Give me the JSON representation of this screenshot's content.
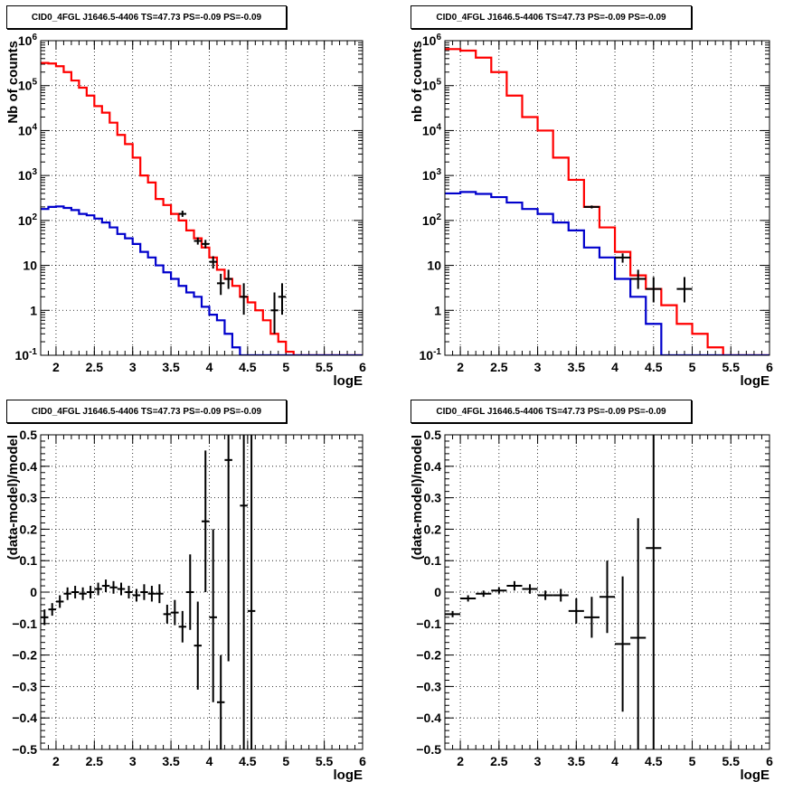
{
  "colors": {
    "frame": "#000000",
    "grid": "#000000",
    "data": "#000000",
    "total": "#ff0000",
    "source": "#0000cc"
  },
  "chart_data": [
    {
      "type": "line",
      "title": "CID0_4FGL J1646.5-4406 TS=47.73 PS=-0.09 PS=-0.09",
      "xlabel": "logE",
      "ylabel": "Nb of counts",
      "xlim": [
        1.8,
        6
      ],
      "ylim": [
        0.1,
        1000000
      ],
      "log_y": true,
      "grid": true,
      "x_ticks": [
        2,
        2.5,
        3,
        3.5,
        4,
        4.5,
        5,
        5.5,
        6
      ],
      "x_tick_labels": [
        "2",
        "2.5",
        "3",
        "3.5",
        "4",
        "4.5",
        "5",
        "5.5",
        "6"
      ],
      "y_ticks": [
        0.1,
        1,
        10,
        100,
        1000,
        10000,
        100000,
        1000000
      ],
      "y_tick_labels": [
        "10^-1",
        "1",
        "10",
        "10^2",
        "10^3",
        "10^4",
        "10^5",
        "10^6"
      ],
      "bin_edges": [
        1.8,
        1.9,
        2.0,
        2.1,
        2.2,
        2.3,
        2.4,
        2.5,
        2.6,
        2.7,
        2.8,
        2.9,
        3.0,
        3.1,
        3.2,
        3.3,
        3.4,
        3.5,
        3.6,
        3.7,
        3.8,
        3.9,
        4.0,
        4.1,
        4.2,
        4.3,
        4.4,
        4.5,
        4.6,
        4.7,
        4.8,
        4.9,
        5.0,
        5.1,
        5.2,
        5.3,
        5.4,
        5.5,
        5.6,
        5.7,
        5.8,
        5.9,
        6.0
      ],
      "series": [
        {
          "style": "step",
          "color": "#ff0000",
          "values": [
            320000,
            310000,
            270000,
            200000,
            130000,
            90000,
            60000,
            35000,
            25000,
            15000,
            8000,
            5000,
            2500,
            1000,
            700,
            300,
            220,
            140,
            100,
            60,
            40,
            25,
            15,
            8,
            5,
            3.5,
            2,
            1.5,
            1,
            0.6,
            0.3,
            0.2,
            0.12,
            0.1,
            0.1,
            0.1,
            0.1,
            0.1,
            0.1,
            0.1,
            0.1,
            0.1
          ]
        },
        {
          "style": "step",
          "color": "#0000cc",
          "values": [
            180,
            200,
            205,
            190,
            170,
            140,
            130,
            110,
            90,
            70,
            50,
            40,
            30,
            20,
            15,
            10,
            7,
            5,
            3.5,
            2.5,
            2,
            1.2,
            0.8,
            0.6,
            0.3,
            0.15,
            0.1,
            0.1,
            0.1,
            0.1,
            0.1,
            0.1,
            0.1,
            0.1,
            0.1,
            0.1,
            0.1,
            0.1,
            0.1,
            0.1,
            0.1,
            0.1
          ]
        },
        {
          "style": "errorbar",
          "color": "#000000",
          "points": [
            {
              "x": 3.65,
              "y": 140,
              "xerr": 0.05,
              "ylo": 120,
              "yhi": 165
            },
            {
              "x": 3.85,
              "y": 35,
              "xerr": 0.05,
              "ylo": 29,
              "yhi": 42
            },
            {
              "x": 3.95,
              "y": 30,
              "xerr": 0.05,
              "ylo": 24,
              "yhi": 37
            },
            {
              "x": 4.05,
              "y": 12,
              "xerr": 0.05,
              "ylo": 8.5,
              "yhi": 16
            },
            {
              "x": 4.15,
              "y": 4,
              "xerr": 0.05,
              "ylo": 2.2,
              "yhi": 6.5
            },
            {
              "x": 4.25,
              "y": 5,
              "xerr": 0.05,
              "ylo": 3,
              "yhi": 8
            },
            {
              "x": 4.45,
              "y": 2,
              "xerr": 0.05,
              "ylo": 0.8,
              "yhi": 4
            },
            {
              "x": 4.85,
              "y": 1,
              "xerr": 0.05,
              "ylo": 0.3,
              "yhi": 2.5
            },
            {
              "x": 4.95,
              "y": 2,
              "xerr": 0.05,
              "ylo": 0.8,
              "yhi": 4
            }
          ]
        }
      ]
    },
    {
      "type": "line",
      "title": "CID0_4FGL J1646.5-4406 TS=47.73 PS=-0.09 PS=-0.09",
      "xlabel": "logE",
      "ylabel": "nb of counts",
      "xlim": [
        1.8,
        6
      ],
      "ylim": [
        0.1,
        1000000
      ],
      "log_y": true,
      "grid": true,
      "x_ticks": [
        2,
        2.5,
        3,
        3.5,
        4,
        4.5,
        5,
        5.5,
        6
      ],
      "x_tick_labels": [
        "2",
        "2.5",
        "3",
        "3.5",
        "4",
        "4.5",
        "5",
        "5.5",
        "6"
      ],
      "y_ticks": [
        0.1,
        1,
        10,
        100,
        1000,
        10000,
        100000,
        1000000
      ],
      "y_tick_labels": [
        "10^-1",
        "1",
        "10",
        "10^2",
        "10^3",
        "10^4",
        "10^5",
        "10^6"
      ],
      "bin_edges": [
        1.8,
        2.0,
        2.2,
        2.4,
        2.6,
        2.8,
        3.0,
        3.2,
        3.4,
        3.6,
        3.8,
        4.0,
        4.2,
        4.4,
        4.6,
        4.8,
        5.0,
        5.2,
        5.4,
        5.6,
        5.8,
        6.0
      ],
      "series": [
        {
          "style": "step",
          "color": "#ff0000",
          "values": [
            650000,
            600000,
            420000,
            200000,
            60000,
            20000,
            10000,
            2500,
            800,
            200,
            70,
            20,
            6,
            3,
            1.3,
            0.5,
            0.3,
            0.15,
            0.1,
            0.1,
            0.1
          ]
        },
        {
          "style": "step",
          "color": "#0000cc",
          "values": [
            400,
            430,
            390,
            330,
            250,
            180,
            140,
            90,
            60,
            25,
            15,
            5,
            2,
            0.5,
            0.1,
            0.1,
            0.1,
            0.1,
            0.1,
            0.1,
            0.1
          ]
        },
        {
          "style": "errorbar",
          "color": "#000000",
          "points": [
            {
              "x": 3.7,
              "y": 200,
              "xerr": 0.1,
              "ylo": 185,
              "yhi": 215
            },
            {
              "x": 4.1,
              "y": 15,
              "xerr": 0.1,
              "ylo": 11.5,
              "yhi": 18.5
            },
            {
              "x": 4.3,
              "y": 5,
              "xerr": 0.1,
              "ylo": 3,
              "yhi": 8
            },
            {
              "x": 4.5,
              "y": 3,
              "xerr": 0.1,
              "ylo": 1.5,
              "yhi": 5.5
            },
            {
              "x": 4.9,
              "y": 3,
              "xerr": 0.1,
              "ylo": 1.5,
              "yhi": 5.5
            }
          ]
        }
      ]
    },
    {
      "type": "scatter",
      "title": "CID0_4FGL J1646.5-4406 TS=47.73 PS=-0.09 PS=-0.09",
      "xlabel": "logE",
      "ylabel": "(data-model)/model",
      "xlim": [
        1.8,
        6
      ],
      "ylim": [
        -0.5,
        0.5
      ],
      "grid": true,
      "x_ticks": [
        2,
        2.5,
        3,
        3.5,
        4,
        4.5,
        5,
        5.5,
        6
      ],
      "x_tick_labels": [
        "2",
        "2.5",
        "3",
        "3.5",
        "4",
        "4.5",
        "5",
        "5.5",
        "6"
      ],
      "y_ticks": [
        -0.5,
        -0.4,
        -0.3,
        -0.2,
        -0.1,
        0,
        0.1,
        0.2,
        0.3,
        0.4,
        0.5
      ],
      "y_tick_labels": [
        "−0.5",
        "−0.4",
        "−0.3",
        "−0.2",
        "−0.1",
        "0",
        "0.1",
        "0.2",
        "0.3",
        "0.4",
        "0.5"
      ],
      "series": [
        {
          "style": "errorbar",
          "color": "#000000",
          "points": [
            {
              "x": 1.85,
              "y": -0.08,
              "xerr": 0.05,
              "ylo": -0.105,
              "yhi": -0.055
            },
            {
              "x": 1.95,
              "y": -0.055,
              "xerr": 0.05,
              "ylo": -0.075,
              "yhi": -0.035
            },
            {
              "x": 2.05,
              "y": -0.03,
              "xerr": 0.05,
              "ylo": -0.05,
              "yhi": -0.01
            },
            {
              "x": 2.15,
              "y": -0.005,
              "xerr": 0.05,
              "ylo": -0.025,
              "yhi": 0.015
            },
            {
              "x": 2.25,
              "y": 0.0,
              "xerr": 0.05,
              "ylo": -0.02,
              "yhi": 0.02
            },
            {
              "x": 2.35,
              "y": -0.005,
              "xerr": 0.05,
              "ylo": -0.025,
              "yhi": 0.015
            },
            {
              "x": 2.45,
              "y": 0.0,
              "xerr": 0.05,
              "ylo": -0.02,
              "yhi": 0.02
            },
            {
              "x": 2.55,
              "y": 0.01,
              "xerr": 0.05,
              "ylo": -0.01,
              "yhi": 0.03
            },
            {
              "x": 2.65,
              "y": 0.02,
              "xerr": 0.05,
              "ylo": 0.0,
              "yhi": 0.04
            },
            {
              "x": 2.75,
              "y": 0.015,
              "xerr": 0.05,
              "ylo": -0.005,
              "yhi": 0.035
            },
            {
              "x": 2.85,
              "y": 0.01,
              "xerr": 0.05,
              "ylo": -0.01,
              "yhi": 0.03
            },
            {
              "x": 2.95,
              "y": 0.0,
              "xerr": 0.05,
              "ylo": -0.02,
              "yhi": 0.02
            },
            {
              "x": 3.05,
              "y": -0.01,
              "xerr": 0.05,
              "ylo": -0.03,
              "yhi": 0.01
            },
            {
              "x": 3.15,
              "y": 0.0,
              "xerr": 0.05,
              "ylo": -0.025,
              "yhi": 0.025
            },
            {
              "x": 3.25,
              "y": -0.005,
              "xerr": 0.05,
              "ylo": -0.03,
              "yhi": 0.02
            },
            {
              "x": 3.35,
              "y": -0.005,
              "xerr": 0.05,
              "ylo": -0.035,
              "yhi": 0.025
            },
            {
              "x": 3.45,
              "y": -0.07,
              "xerr": 0.05,
              "ylo": -0.1,
              "yhi": -0.04
            },
            {
              "x": 3.55,
              "y": -0.065,
              "xerr": 0.05,
              "ylo": -0.105,
              "yhi": -0.025
            },
            {
              "x": 3.65,
              "y": -0.11,
              "xerr": 0.05,
              "ylo": -0.16,
              "yhi": -0.06
            },
            {
              "x": 3.75,
              "y": 0.0,
              "xerr": 0.05,
              "ylo": -0.12,
              "yhi": 0.12
            },
            {
              "x": 3.85,
              "y": -0.17,
              "xerr": 0.05,
              "ylo": -0.31,
              "yhi": -0.03
            },
            {
              "x": 3.95,
              "y": 0.225,
              "xerr": 0.05,
              "ylo": 0.0,
              "yhi": 0.45
            },
            {
              "x": 4.05,
              "y": -0.08,
              "xerr": 0.05,
              "ylo": -0.35,
              "yhi": 0.2
            },
            {
              "x": 4.15,
              "y": -0.35,
              "xerr": 0.05,
              "ylo": -0.5,
              "yhi": -0.2
            },
            {
              "x": 4.25,
              "y": 0.42,
              "xerr": 0.05,
              "ylo": -0.22,
              "yhi": 0.5
            },
            {
              "x": 4.45,
              "y": 0.275,
              "xerr": 0.05,
              "ylo": -0.5,
              "yhi": 0.5
            },
            {
              "x": 4.55,
              "y": -0.06,
              "xerr": 0.05,
              "ylo": -0.5,
              "yhi": 0.5
            }
          ]
        }
      ]
    },
    {
      "type": "scatter",
      "title": "CID0_4FGL J1646.5-4406 TS=47.73 PS=-0.09 PS=-0.09",
      "xlabel": "logE",
      "ylabel": "(data-model)/model",
      "xlim": [
        1.8,
        6
      ],
      "ylim": [
        -0.5,
        0.5
      ],
      "grid": true,
      "x_ticks": [
        2,
        2.5,
        3,
        3.5,
        4,
        4.5,
        5,
        5.5,
        6
      ],
      "x_tick_labels": [
        "2",
        "2.5",
        "3",
        "3.5",
        "4",
        "4.5",
        "5",
        "5.5",
        "6"
      ],
      "y_ticks": [
        -0.5,
        -0.4,
        -0.3,
        -0.2,
        -0.1,
        0,
        0.1,
        0.2,
        0.3,
        0.4,
        0.5
      ],
      "y_tick_labels": [
        "−0.5",
        "−0.4",
        "−0.3",
        "−0.2",
        "−0.1",
        "0",
        "0.1",
        "0.2",
        "0.3",
        "0.4",
        "0.5"
      ],
      "series": [
        {
          "style": "errorbar",
          "color": "#000000",
          "points": [
            {
              "x": 1.9,
              "y": -0.07,
              "xerr": 0.1,
              "ylo": -0.08,
              "yhi": -0.06
            },
            {
              "x": 2.1,
              "y": -0.02,
              "xerr": 0.1,
              "ylo": -0.03,
              "yhi": -0.01
            },
            {
              "x": 2.3,
              "y": -0.005,
              "xerr": 0.1,
              "ylo": -0.015,
              "yhi": 0.005
            },
            {
              "x": 2.5,
              "y": 0.005,
              "xerr": 0.1,
              "ylo": -0.005,
              "yhi": 0.015
            },
            {
              "x": 2.7,
              "y": 0.02,
              "xerr": 0.1,
              "ylo": 0.005,
              "yhi": 0.035
            },
            {
              "x": 2.9,
              "y": 0.01,
              "xerr": 0.1,
              "ylo": -0.005,
              "yhi": 0.025
            },
            {
              "x": 3.1,
              "y": -0.01,
              "xerr": 0.1,
              "ylo": -0.025,
              "yhi": 0.005
            },
            {
              "x": 3.3,
              "y": -0.01,
              "xerr": 0.1,
              "ylo": -0.03,
              "yhi": 0.01
            },
            {
              "x": 3.5,
              "y": -0.06,
              "xerr": 0.1,
              "ylo": -0.1,
              "yhi": -0.02
            },
            {
              "x": 3.7,
              "y": -0.08,
              "xerr": 0.1,
              "ylo": -0.145,
              "yhi": -0.015
            },
            {
              "x": 3.9,
              "y": -0.015,
              "xerr": 0.1,
              "ylo": -0.13,
              "yhi": 0.1
            },
            {
              "x": 4.1,
              "y": -0.165,
              "xerr": 0.1,
              "ylo": -0.38,
              "yhi": 0.05
            },
            {
              "x": 4.3,
              "y": -0.145,
              "xerr": 0.1,
              "ylo": -0.5,
              "yhi": 0.235
            },
            {
              "x": 4.5,
              "y": 0.14,
              "xerr": 0.1,
              "ylo": -0.5,
              "yhi": 0.5
            }
          ]
        }
      ]
    }
  ]
}
